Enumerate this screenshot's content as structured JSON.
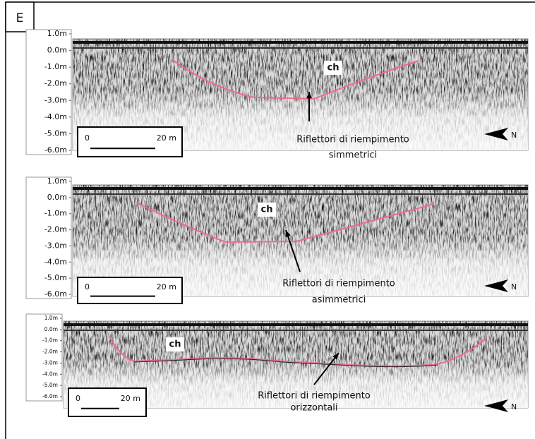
{
  "label": "E",
  "panels": [
    {
      "depth_labels": [
        "1.0m",
        "0.0m",
        "-1.0m",
        "-2.0m",
        "-3.0m",
        "-4.0m",
        "-5.0m",
        "-6.0m"
      ],
      "scale": {
        "start": "0",
        "end": "20 m"
      },
      "channel_label": "ch",
      "annotation": [
        "Riflettori di riempimento",
        "simmetrici"
      ],
      "north": "N"
    },
    {
      "depth_labels": [
        "1.0m",
        "0.0m",
        "-1.0m",
        "-2.0m",
        "-3.0m",
        "-4.0m",
        "-5.0m",
        "-6.0m"
      ],
      "scale": {
        "start": "0",
        "end": "20 m"
      },
      "channel_label": "ch",
      "annotation": [
        "Riflettori di riempimento",
        "asimmetrici"
      ],
      "north": "N"
    },
    {
      "depth_labels": [
        "1.0m",
        "0.0m",
        "-1.0m",
        "-2.0m",
        "-3.0m",
        "-4.0m",
        "-5.0m",
        "-6.0m"
      ],
      "scale": {
        "start": "0",
        "end": "20 m"
      },
      "channel_label": "ch",
      "annotation": [
        "Riflettori di riempimento",
        "orizzontali"
      ],
      "north": "N"
    }
  ]
}
